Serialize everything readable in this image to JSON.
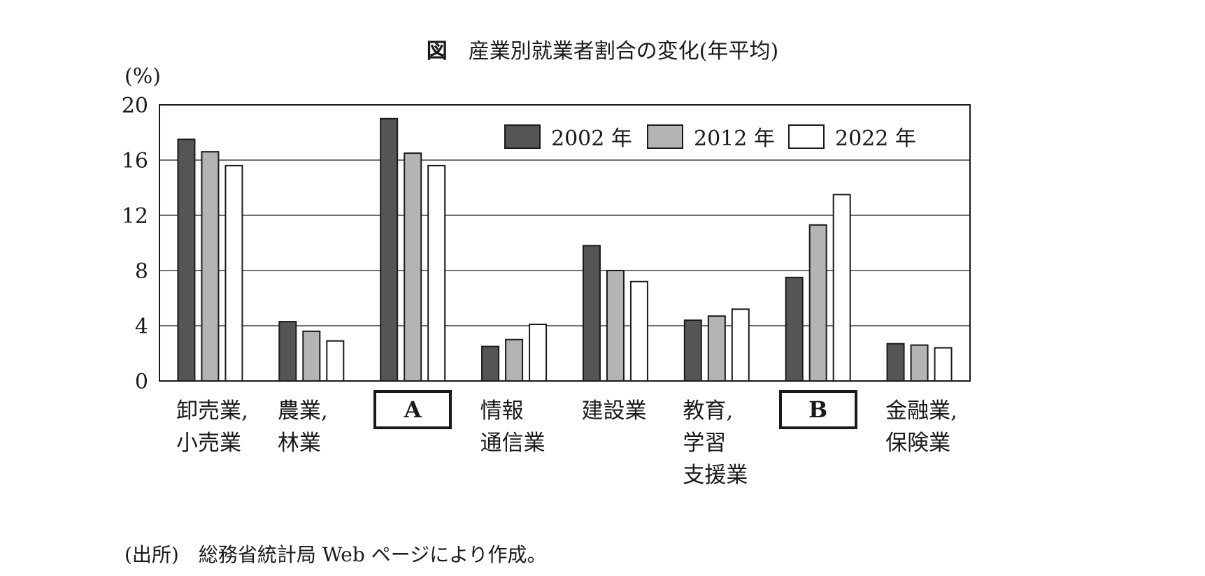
{
  "chart_data": {
    "type": "bar",
    "title_prefix": "図",
    "title": "産業別就業者割合の変化(年平均)",
    "ylabel": "(%)",
    "xlabel": "",
    "ylim": [
      0,
      20
    ],
    "yticks": [
      "0",
      "4",
      "8",
      "12",
      "16",
      "20"
    ],
    "grid": true,
    "legend_position": "top-right",
    "categories": [
      "卸売業,\n小売業",
      "農業,\n林業",
      "A",
      "情報\n通信業",
      "建設業",
      "教育,\n学習\n支援業",
      "B",
      "金融業,\n保険業"
    ],
    "boxed_categories": [
      "A",
      "B"
    ],
    "series": [
      {
        "name": "2002 年",
        "color": "#555555",
        "values": [
          17.5,
          4.3,
          19.0,
          2.5,
          9.8,
          4.4,
          7.5,
          2.7
        ]
      },
      {
        "name": "2012 年",
        "color": "#b4b4b4",
        "values": [
          16.6,
          3.6,
          16.5,
          3.0,
          8.0,
          4.7,
          11.3,
          2.6
        ]
      },
      {
        "name": "2022 年",
        "color": "#ffffff",
        "values": [
          15.6,
          2.9,
          15.6,
          4.1,
          7.2,
          5.2,
          13.5,
          2.4
        ]
      }
    ],
    "source": "(出所)　総務省統計局 Web ページにより作成。"
  }
}
